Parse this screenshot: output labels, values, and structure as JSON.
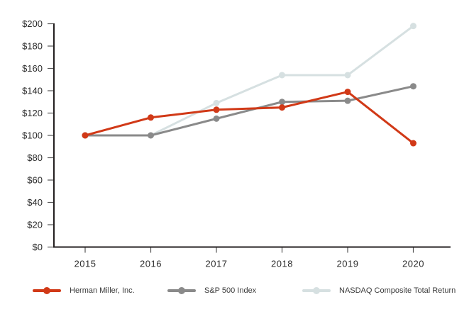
{
  "chart_data": {
    "type": "line",
    "title": "",
    "xlabel": "",
    "ylabel": "",
    "categories": [
      "2015",
      "2016",
      "2017",
      "2018",
      "2019",
      "2020"
    ],
    "series": [
      {
        "name": "Herman Miller, Inc.",
        "color": "#d13917",
        "values": [
          100,
          116,
          123,
          125,
          139,
          93
        ]
      },
      {
        "name": "S&P 500 Index",
        "color": "#8a8a8a",
        "values": [
          100,
          100,
          115,
          130,
          131,
          144
        ]
      },
      {
        "name": "NASDAQ Composite Total Return",
        "color": "#d6e0e1",
        "values": [
          100,
          100,
          129,
          154,
          154,
          198
        ]
      }
    ],
    "ylim": [
      0,
      200
    ],
    "ytick_step": 20,
    "ytick_labels": [
      "$0",
      "$20",
      "$40",
      "$60",
      "$80",
      "$100",
      "$120",
      "$140",
      "$160",
      "$180",
      "$200"
    ],
    "grid": false,
    "legend_position": "bottom",
    "axis_color": "#231f20",
    "tick_color": "#555555",
    "label_color": "#2b2b2b"
  }
}
